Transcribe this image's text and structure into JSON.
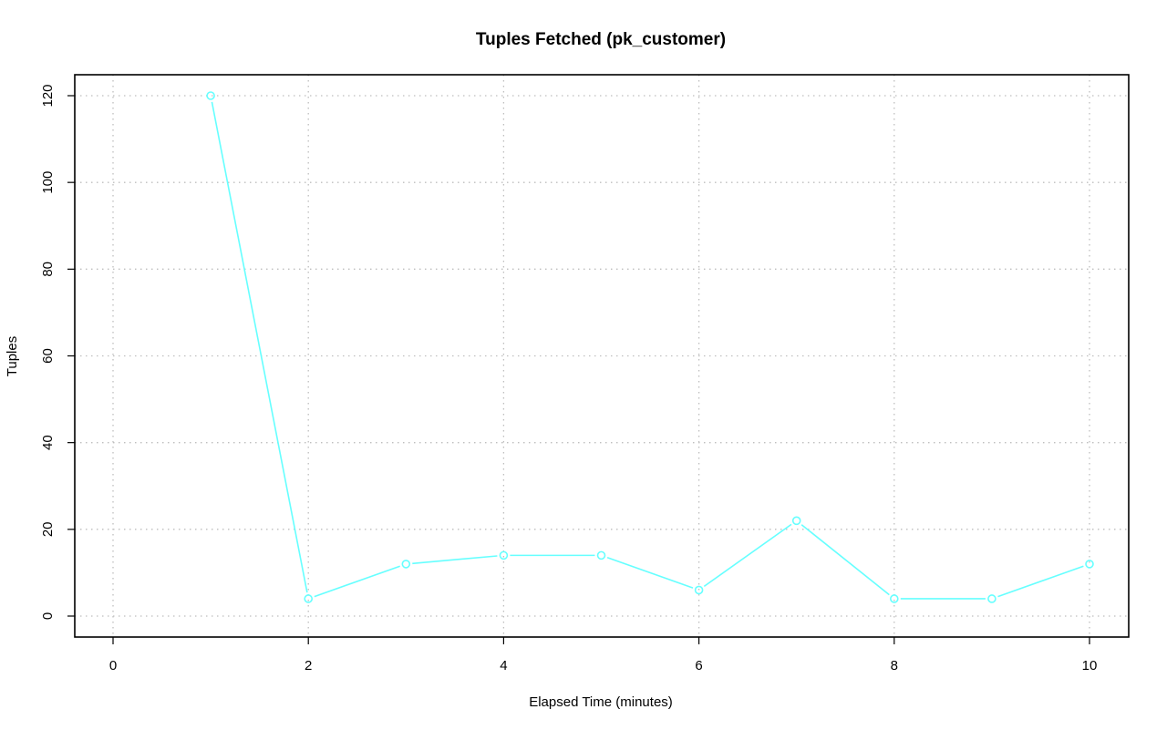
{
  "chart_data": {
    "type": "line",
    "title": "Tuples Fetched (pk_customer)",
    "xlabel": "Elapsed Time (minutes)",
    "ylabel": "Tuples",
    "xlim": [
      0,
      10
    ],
    "ylim": [
      0,
      120
    ],
    "x_ticks": [
      0,
      2,
      4,
      6,
      8,
      10
    ],
    "y_ticks": [
      0,
      20,
      40,
      60,
      80,
      100,
      120
    ],
    "grid": true,
    "legend": "none",
    "series": [
      {
        "color": "#66ffff",
        "marker": "open-circle",
        "x": [
          1,
          2,
          3,
          4,
          5,
          6,
          7,
          8,
          9,
          10
        ],
        "y": [
          120,
          4,
          12,
          14,
          14,
          6,
          22,
          4,
          4,
          12
        ]
      }
    ]
  }
}
